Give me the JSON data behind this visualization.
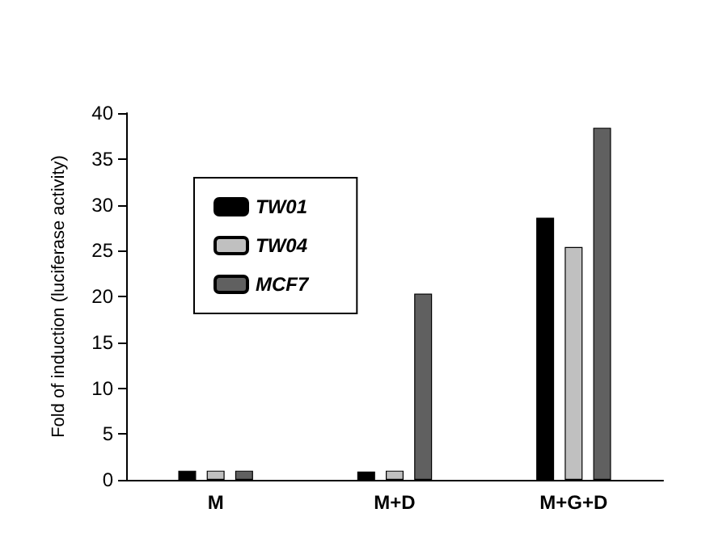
{
  "chart_data": {
    "type": "bar",
    "ylabel": "Fold of induction (luciferase activity)",
    "categories": [
      "M",
      "M+D",
      "M+G+D"
    ],
    "series": [
      {
        "name": "TW01",
        "color": "#000000",
        "values": [
          1,
          0.9,
          28.6
        ]
      },
      {
        "name": "TW04",
        "color": "#c0c0c0",
        "values": [
          1,
          1,
          25.4
        ]
      },
      {
        "name": "MCF7",
        "color": "#606060",
        "values": [
          1,
          20.3,
          38.4
        ]
      }
    ],
    "ylim": [
      0,
      40
    ],
    "yticks": [
      0,
      5,
      10,
      15,
      20,
      25,
      30,
      35,
      40
    ],
    "grid": false,
    "legend": "top left"
  }
}
